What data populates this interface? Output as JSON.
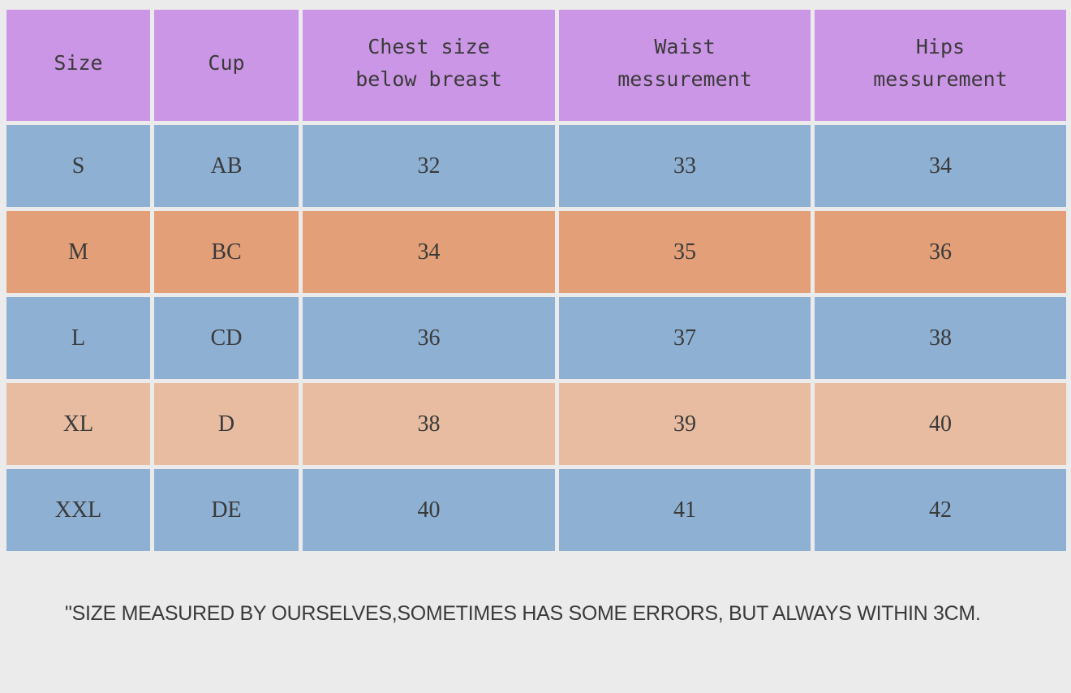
{
  "table": {
    "headers": [
      "Size",
      "Cup",
      "Chest size\nbelow breast",
      "Waist\nmessurement",
      "Hips\nmessurement"
    ],
    "rows": [
      {
        "color": "#8db0d3",
        "cells": [
          "S",
          "AB",
          "32",
          "33",
          "34"
        ]
      },
      {
        "color": "#e39f78",
        "cells": [
          "M",
          "BC",
          "34",
          "35",
          "36"
        ]
      },
      {
        "color": "#8db0d3",
        "cells": [
          "L",
          "CD",
          "36",
          "37",
          "38"
        ]
      },
      {
        "color": "#e8bca1",
        "cells": [
          "XL",
          "D",
          "38",
          "39",
          "40"
        ]
      },
      {
        "color": "#8db0d3",
        "cells": [
          "XXL",
          "DE",
          "40",
          "41",
          "42"
        ]
      }
    ],
    "header_color": "#cc96e6"
  },
  "note": "\"SIZE MEASURED BY OURSELVES,SOMETIMES HAS SOME ERRORS, BUT ALWAYS WITHIN 3CM."
}
